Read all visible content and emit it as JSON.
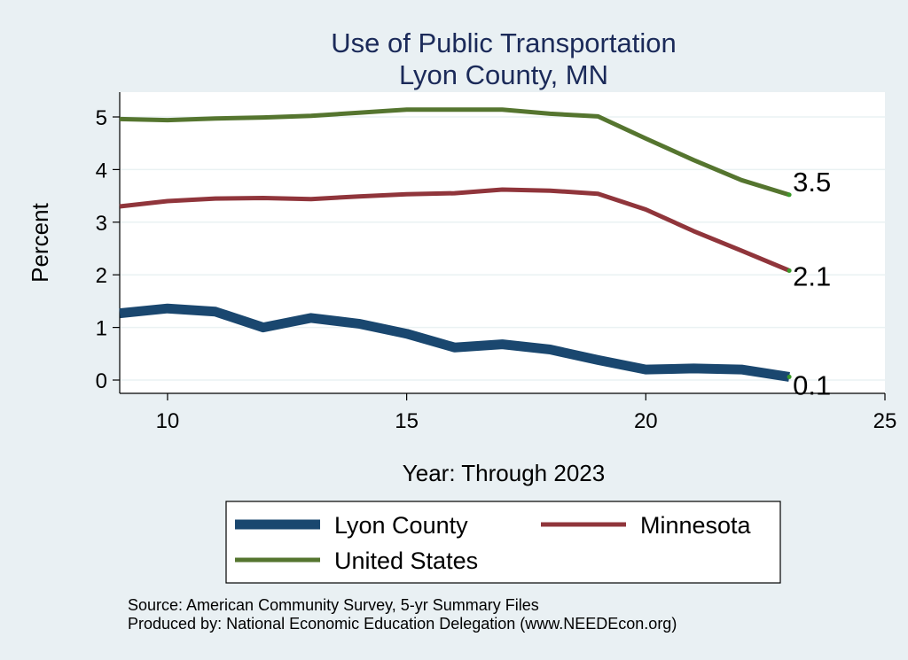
{
  "chart_data": {
    "type": "line",
    "title": "Use of Public Transportation",
    "subtitle": "Lyon County, MN",
    "xlabel": "Year: Through 2023",
    "ylabel": "Percent",
    "xlim": [
      9,
      25
    ],
    "ylim": [
      0,
      5
    ],
    "x_ticks": [
      10,
      15,
      20,
      25
    ],
    "y_ticks": [
      0,
      1,
      2,
      3,
      4,
      5
    ],
    "grid": true,
    "legend_position": "bottom",
    "series": [
      {
        "name": "Lyon County",
        "color": "#1a476f",
        "x": [
          9,
          10,
          11,
          12,
          13,
          14,
          15,
          16,
          17,
          18,
          19,
          20,
          21,
          22,
          23
        ],
        "values": [
          1.27,
          1.36,
          1.3,
          1.0,
          1.18,
          1.07,
          0.88,
          0.62,
          0.68,
          0.58,
          0.38,
          0.2,
          0.22,
          0.2,
          0.06
        ],
        "end_label": "0.1"
      },
      {
        "name": "Minnesota",
        "color": "#90353b",
        "x": [
          9,
          10,
          11,
          12,
          13,
          14,
          15,
          16,
          17,
          18,
          19,
          20,
          21,
          22,
          23
        ],
        "values": [
          3.3,
          3.4,
          3.45,
          3.46,
          3.44,
          3.49,
          3.53,
          3.55,
          3.62,
          3.6,
          3.54,
          3.24,
          2.83,
          2.46,
          2.08
        ],
        "end_label": "2.1"
      },
      {
        "name": "United States",
        "color": "#55752f",
        "x": [
          9,
          10,
          11,
          12,
          13,
          14,
          15,
          16,
          17,
          18,
          19,
          20,
          21,
          22,
          23
        ],
        "values": [
          4.96,
          4.94,
          4.97,
          4.99,
          5.02,
          5.08,
          5.14,
          5.14,
          5.14,
          5.06,
          5.01,
          4.59,
          4.18,
          3.8,
          3.52
        ],
        "end_label": "3.5"
      }
    ],
    "notes": [
      "Source: American Community Survey, 5-yr Summary Files",
      "Produced by: National Economic Education Delegation (www.NEEDEcon.org)"
    ]
  }
}
